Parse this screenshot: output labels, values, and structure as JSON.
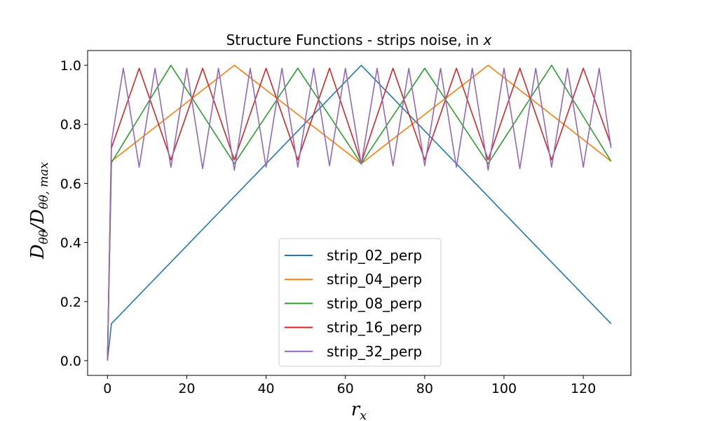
{
  "chart_data": {
    "type": "line",
    "title_main": "Structure Functions - strips noise, in ",
    "title_var": "x",
    "xlabel_main": "r",
    "xlabel_sub": "x",
    "ylabel_main": "D",
    "ylabel_sub1": "θθ",
    "ylabel_slash": "/D",
    "ylabel_sub2": "θθ, max",
    "xlim": [
      -5,
      132
    ],
    "ylim": [
      -0.05,
      1.05
    ],
    "xticks": [
      0,
      20,
      40,
      60,
      80,
      100,
      120
    ],
    "xtick_labels": [
      "0",
      "20",
      "40",
      "60",
      "80",
      "100",
      "120"
    ],
    "yticks": [
      0.0,
      0.2,
      0.4,
      0.6,
      0.8,
      1.0
    ],
    "ytick_labels": [
      "0.0",
      "0.2",
      "0.4",
      "0.6",
      "0.8",
      "1.0"
    ],
    "legend_position": "lower-center",
    "x_range": [
      0,
      127
    ],
    "series": [
      {
        "name": "strip_02_perp",
        "color": "#1f77b4",
        "x": [
          0,
          1,
          64,
          127
        ],
        "y": [
          0.0,
          0.125,
          1.0,
          0.125
        ]
      },
      {
        "name": "strip_04_perp",
        "color": "#ff7f0e",
        "x": [
          0,
          1,
          32,
          64,
          96,
          127
        ],
        "y": [
          0.0,
          0.675,
          1.0,
          0.667,
          1.0,
          0.675
        ]
      },
      {
        "name": "strip_08_perp",
        "color": "#2ca02c",
        "x": [
          0,
          1,
          16,
          32,
          48,
          64,
          80,
          96,
          112,
          127
        ],
        "y": [
          0.0,
          0.67,
          1.0,
          0.667,
          0.99,
          0.667,
          0.99,
          0.667,
          1.0,
          0.675
        ]
      },
      {
        "name": "strip_16_perp",
        "color": "#d62728",
        "x": [
          0,
          1,
          8,
          16,
          24,
          32,
          40,
          48,
          56,
          64,
          72,
          80,
          88,
          96,
          104,
          112,
          120,
          127
        ],
        "y": [
          0.0,
          0.72,
          0.99,
          0.68,
          0.99,
          0.68,
          0.99,
          0.68,
          0.99,
          0.67,
          0.99,
          0.68,
          0.99,
          0.68,
          0.99,
          0.68,
          0.99,
          0.73
        ]
      },
      {
        "name": "strip_32_perp",
        "color": "#9467bd",
        "x": [
          0,
          1,
          4,
          8,
          12,
          16,
          20,
          24,
          28,
          32,
          36,
          40,
          44,
          48,
          52,
          56,
          60,
          64,
          68,
          72,
          76,
          80,
          84,
          88,
          92,
          96,
          100,
          104,
          108,
          112,
          116,
          120,
          124,
          127
        ],
        "y": [
          0.0,
          0.74,
          0.99,
          0.655,
          0.99,
          0.655,
          0.99,
          0.65,
          0.99,
          0.645,
          0.99,
          0.655,
          0.99,
          0.655,
          0.99,
          0.66,
          0.99,
          0.665,
          0.99,
          0.66,
          0.99,
          0.66,
          0.99,
          0.655,
          0.99,
          0.645,
          0.99,
          0.65,
          0.99,
          0.655,
          0.99,
          0.655,
          0.99,
          0.72
        ]
      }
    ]
  }
}
